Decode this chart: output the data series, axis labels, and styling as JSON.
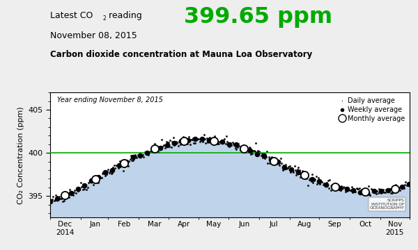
{
  "title_line1": "Latest CO",
  "title_line2": "November 08, 2015",
  "title_value": "399.65 ppm",
  "subtitle": "Carbon dioxide concentration at Mauna Loa Observatory",
  "year_label": "Year ending November 8, 2015",
  "ylabel": "CO₂ Concentration (ppm)",
  "green_line_y": 400.0,
  "ylim": [
    392.5,
    407.0
  ],
  "fill_color": "#b8cfe8",
  "fill_alpha": 0.9,
  "title_value_color": "#00aa00",
  "green_line_color": "#00aa00",
  "fig_bg_color": "#eeeeee",
  "plot_bg_color": "#ffffff",
  "month_labels": [
    "Dec\n2014",
    "Jan",
    "Feb",
    "Mar",
    "Apr",
    "May",
    "Jun",
    "Jul",
    "Aug",
    "Sep",
    "Oct",
    "Nov\n2015"
  ],
  "month_tick_days": [
    15,
    46,
    75,
    106,
    136,
    166,
    197,
    227,
    258,
    289,
    320,
    350
  ],
  "month_boundary_days": [
    0,
    31,
    59,
    90,
    120,
    151,
    181,
    212,
    243,
    273,
    304,
    335,
    365
  ]
}
